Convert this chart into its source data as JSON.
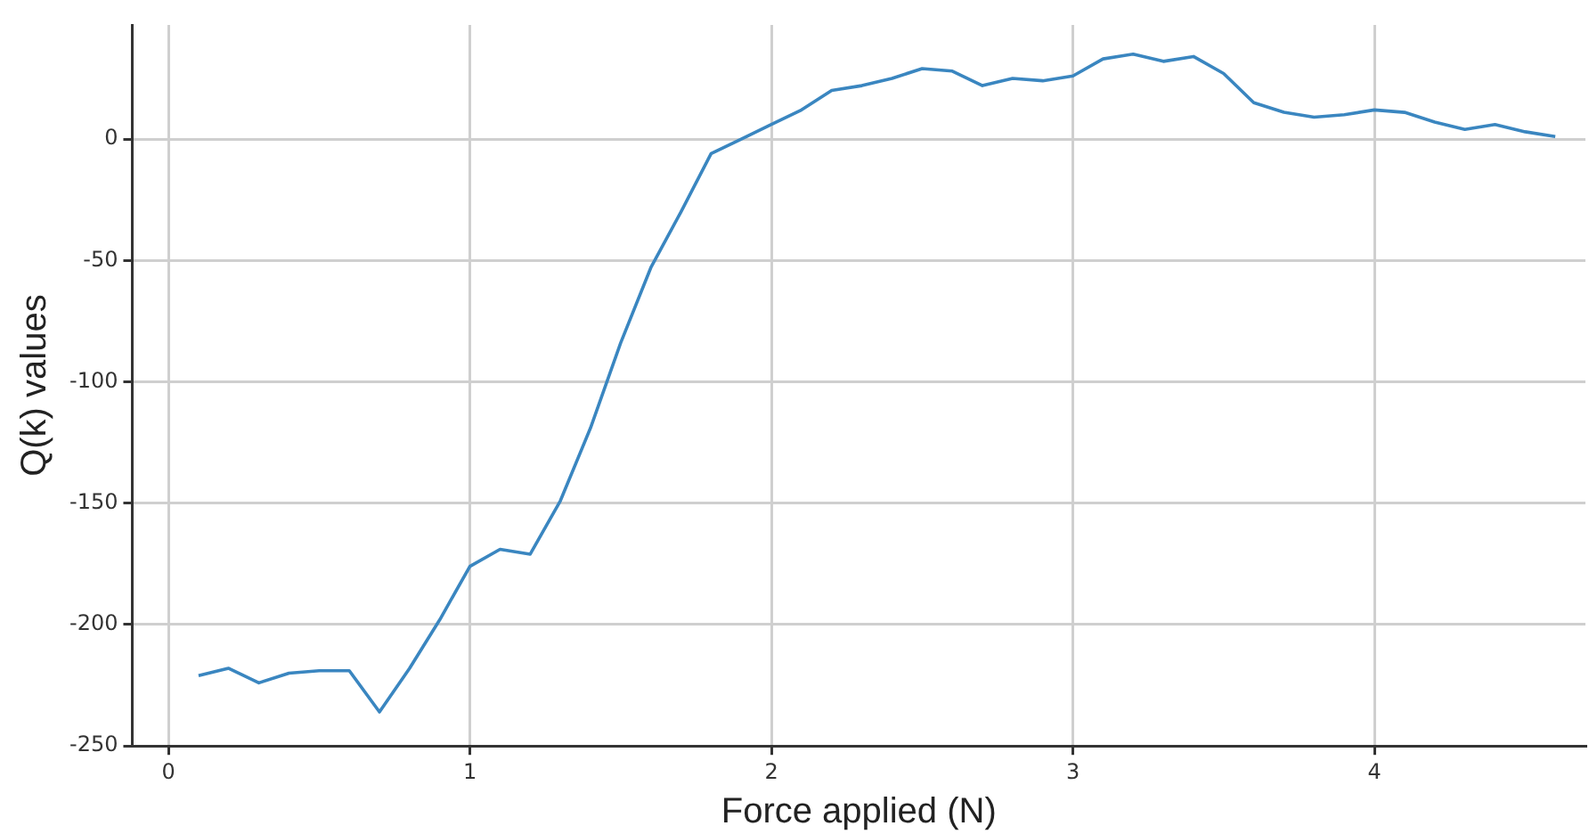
{
  "chart_data": {
    "type": "line",
    "xlabel": "Force applied (N)",
    "ylabel": "Q(k) values",
    "x": [
      0.1,
      0.2,
      0.3,
      0.4,
      0.5,
      0.6,
      0.7,
      0.8,
      0.9,
      1.0,
      1.1,
      1.2,
      1.3,
      1.4,
      1.5,
      1.6,
      1.7,
      1.8,
      1.9,
      2.0,
      2.1,
      2.2,
      2.3,
      2.4,
      2.5,
      2.6,
      2.7,
      2.8,
      2.9,
      3.0,
      3.1,
      3.2,
      3.3,
      3.4,
      3.5,
      3.6,
      3.7,
      3.8,
      3.9,
      4.0,
      4.1,
      4.2,
      4.3,
      4.4,
      4.5,
      4.6
    ],
    "series": [
      {
        "color": "#3a86c0",
        "values": [
          -221,
          -218,
          -224,
          -220,
          -219,
          -219,
          -236,
          -218,
          -198,
          -176,
          -169,
          -171,
          -149,
          -119,
          -84,
          -53,
          -30,
          -6,
          0,
          6,
          12,
          20,
          22,
          25,
          29,
          28,
          22,
          25,
          24,
          26,
          33,
          35,
          32,
          34,
          27,
          15,
          11,
          9,
          10,
          12,
          11,
          7,
          4,
          6,
          3,
          1
        ]
      }
    ],
    "xlim": [
      -0.12,
      4.7
    ],
    "xticks": [
      0,
      1,
      2,
      3,
      4
    ],
    "ylim": [
      -250,
      47
    ],
    "yticks": [
      -250,
      -200,
      -150,
      -100,
      -50,
      0
    ],
    "grid": true,
    "legend": false,
    "marker": "none",
    "line_style": "solid"
  }
}
